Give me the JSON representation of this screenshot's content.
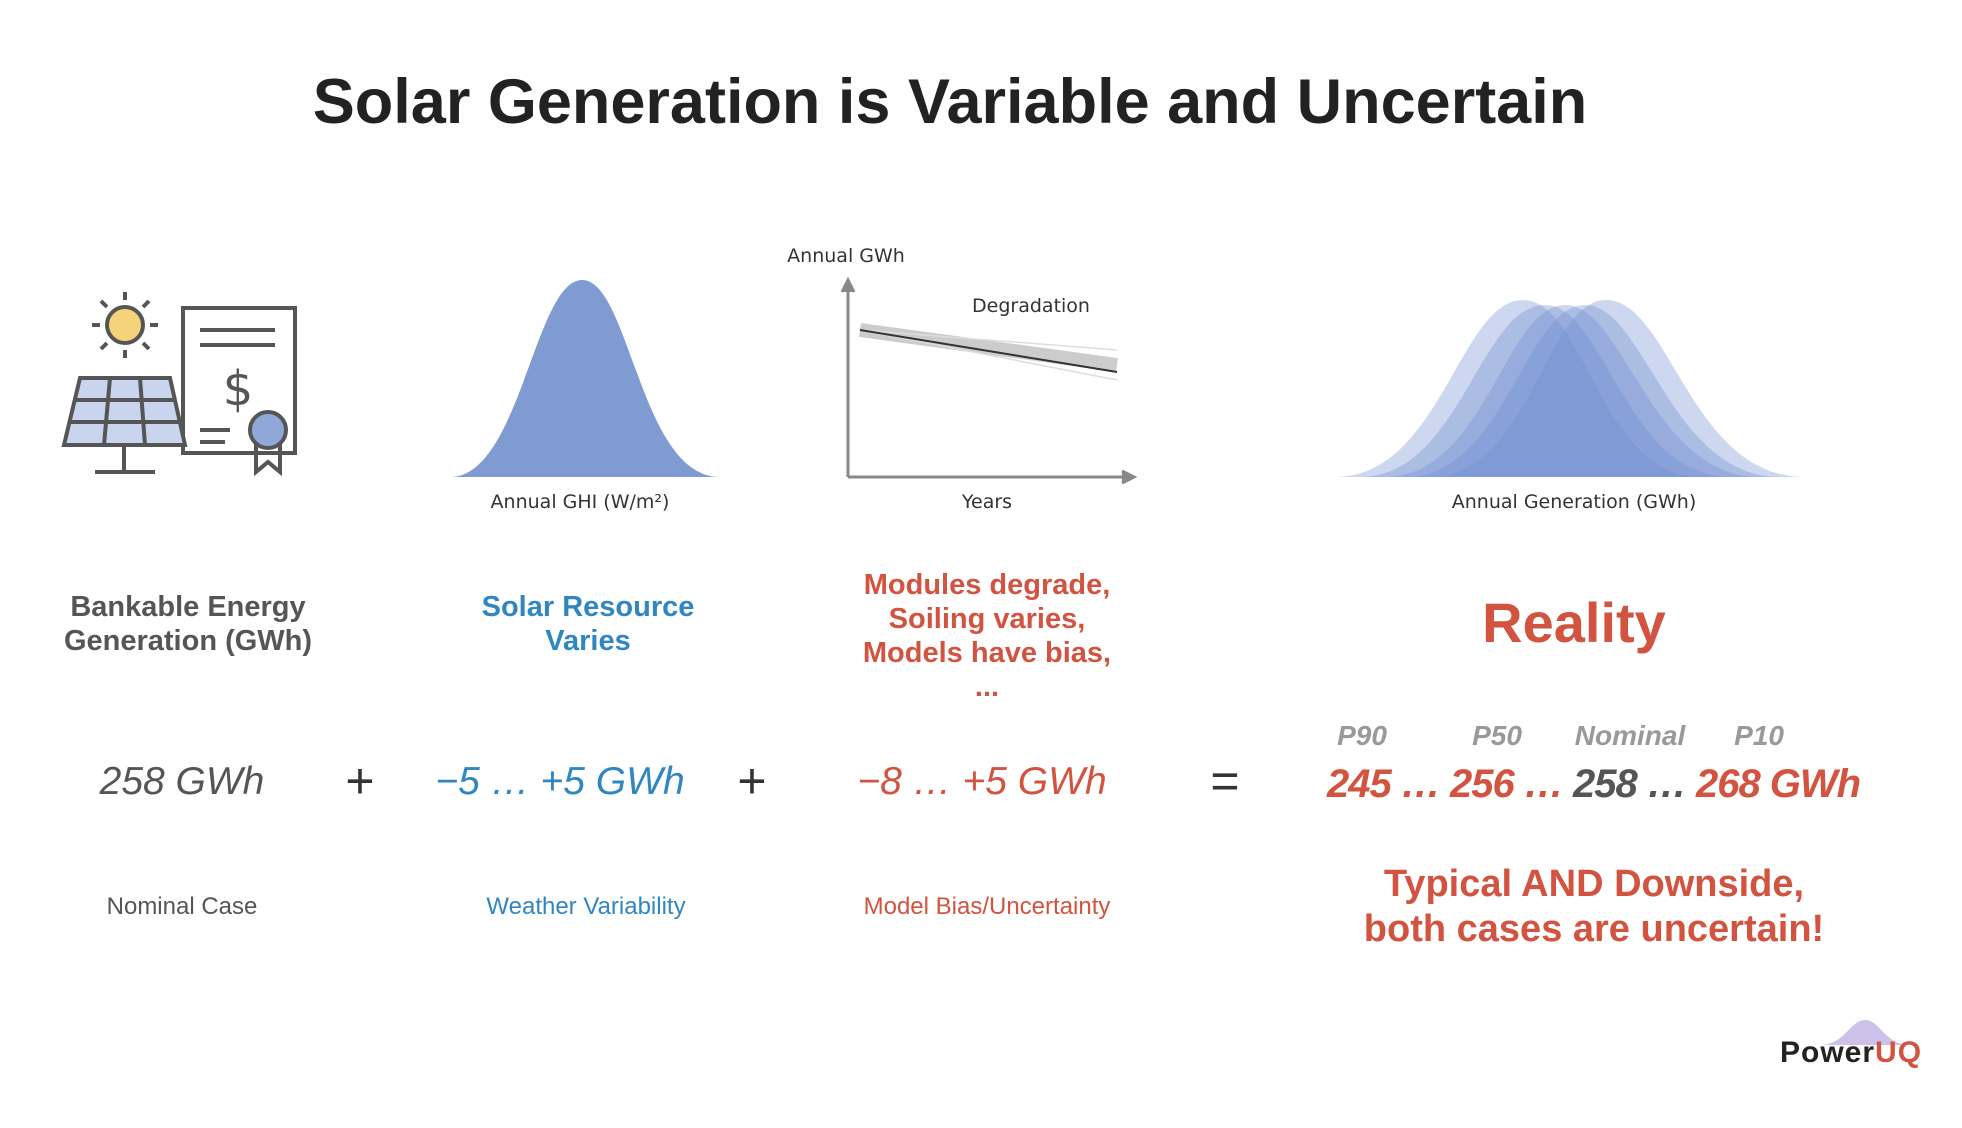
{
  "title": "Solar Generation is Variable and Uncertain",
  "figures": {
    "ghi_label": "Annual GHI (W/m²)",
    "degradation_y_label": "Annual GWh",
    "degradation_label": "Degradation",
    "degradation_x_label": "Years",
    "generation_label": "Annual Generation (GWh)"
  },
  "columns": [
    {
      "heading": [
        "Bankable Energy",
        "Generation (GWh)"
      ],
      "value": "258 GWh",
      "caption": "Nominal Case"
    },
    {
      "heading": [
        "Solar Resource",
        "Varies"
      ],
      "value": "−5 … +5 GWh",
      "caption": "Weather Variability"
    },
    {
      "heading": [
        "Modules degrade,",
        "Soiling varies,",
        "Models have bias,",
        "..."
      ],
      "value": "−8 … +5 GWh",
      "caption": "Model Bias/Uncertainty"
    }
  ],
  "operators": [
    "+",
    "+",
    "="
  ],
  "reality": {
    "heading": "Reality",
    "labels": [
      "P90",
      "P50",
      "Nominal",
      "P10"
    ],
    "values": [
      "245 …",
      "256 …",
      "258 …",
      "268 GWh"
    ],
    "note": [
      "Typical AND Downside,",
      "both cases are uncertain!"
    ]
  },
  "logo": [
    "Power",
    "UQ"
  ]
}
